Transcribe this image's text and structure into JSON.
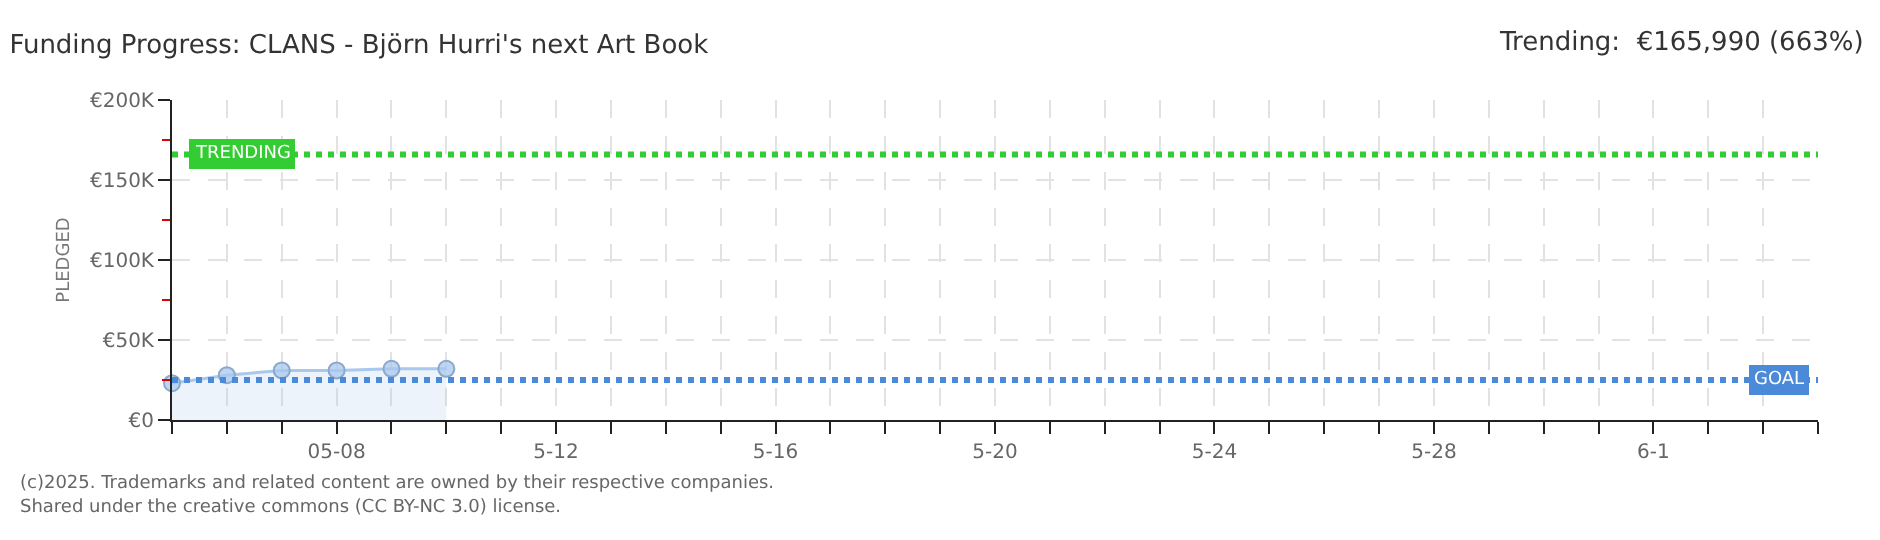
{
  "chart_data": {
    "type": "area",
    "title": "Funding Progress: CLANS - Björn Hurri's next Art Book",
    "ylabel": "PLEDGED",
    "annotations": [
      "Trending:  €165,990 (663%)",
      "(c)2025. Trademarks and related content are owned by their respective companies.",
      "Shared under the creative commons (CC BY-NC 3.0) license."
    ],
    "x": [
      "--05-05",
      "--05-06",
      "--05-07",
      "--05-08",
      "--05-09",
      "--05-10"
    ],
    "series": [
      {
        "color": "#a8c8ee",
        "values": [
          23000,
          28000,
          31000,
          31000,
          32000,
          32000
        ]
      }
    ],
    "marker": "circle",
    "xlim": [
      "--05-05",
      "--06-04"
    ],
    "xticks": [
      {
        "value": "--05-05",
        "label": null
      },
      {
        "value": "--05-06",
        "label": null
      },
      {
        "value": "--05-07",
        "label": null
      },
      {
        "value": "--05-08",
        "label": "05-08"
      },
      {
        "value": "--05-09",
        "label": null
      },
      {
        "value": "--05-10",
        "label": null
      },
      {
        "value": "--05-11",
        "label": null
      },
      {
        "value": "--05-12",
        "label": "5-12"
      },
      {
        "value": "--05-13",
        "label": null
      },
      {
        "value": "--05-14",
        "label": null
      },
      {
        "value": "--05-15",
        "label": null
      },
      {
        "value": "--05-16",
        "label": "5-16"
      },
      {
        "value": "--05-17",
        "label": null
      },
      {
        "value": "--05-18",
        "label": null
      },
      {
        "value": "--05-19",
        "label": null
      },
      {
        "value": "--05-20",
        "label": "5-20"
      },
      {
        "value": "--05-21",
        "label": null
      },
      {
        "value": "--05-22",
        "label": null
      },
      {
        "value": "--05-23",
        "label": null
      },
      {
        "value": "--05-24",
        "label": "5-24"
      },
      {
        "value": "--05-25",
        "label": null
      },
      {
        "value": "--05-26",
        "label": null
      },
      {
        "value": "--05-27",
        "label": null
      },
      {
        "value": "--05-28",
        "label": "5-28"
      },
      {
        "value": "--05-29",
        "label": null
      },
      {
        "value": "--05-30",
        "label": null
      },
      {
        "value": "--05-31",
        "label": null
      },
      {
        "value": "--06-01",
        "label": "6-1"
      },
      {
        "value": "--06-02",
        "label": null
      },
      {
        "value": "--06-03",
        "label": null
      },
      {
        "value": "--06-04",
        "label": null
      }
    ],
    "ylim": [
      0,
      200000
    ],
    "yticks": [
      {
        "value": 0,
        "label": "€0"
      },
      {
        "value": 25000,
        "label": null
      },
      {
        "value": 50000,
        "label": "€50K"
      },
      {
        "value": 75000,
        "label": null
      },
      {
        "value": 100000,
        "label": "€100K"
      },
      {
        "value": 125000,
        "label": null
      },
      {
        "value": 150000,
        "label": "€150K"
      },
      {
        "value": 175000,
        "label": null
      },
      {
        "value": 200000,
        "label": "€200K"
      }
    ],
    "grid": true,
    "ref_lines": [
      {
        "axis": "y",
        "value": 165990,
        "label": "TRENDING",
        "color": "#33cc33",
        "line_style": "dotted"
      },
      {
        "axis": "y",
        "value": 25000,
        "label": "GOAL",
        "color": "#4a8ad8",
        "line_style": "dotted"
      }
    ]
  }
}
